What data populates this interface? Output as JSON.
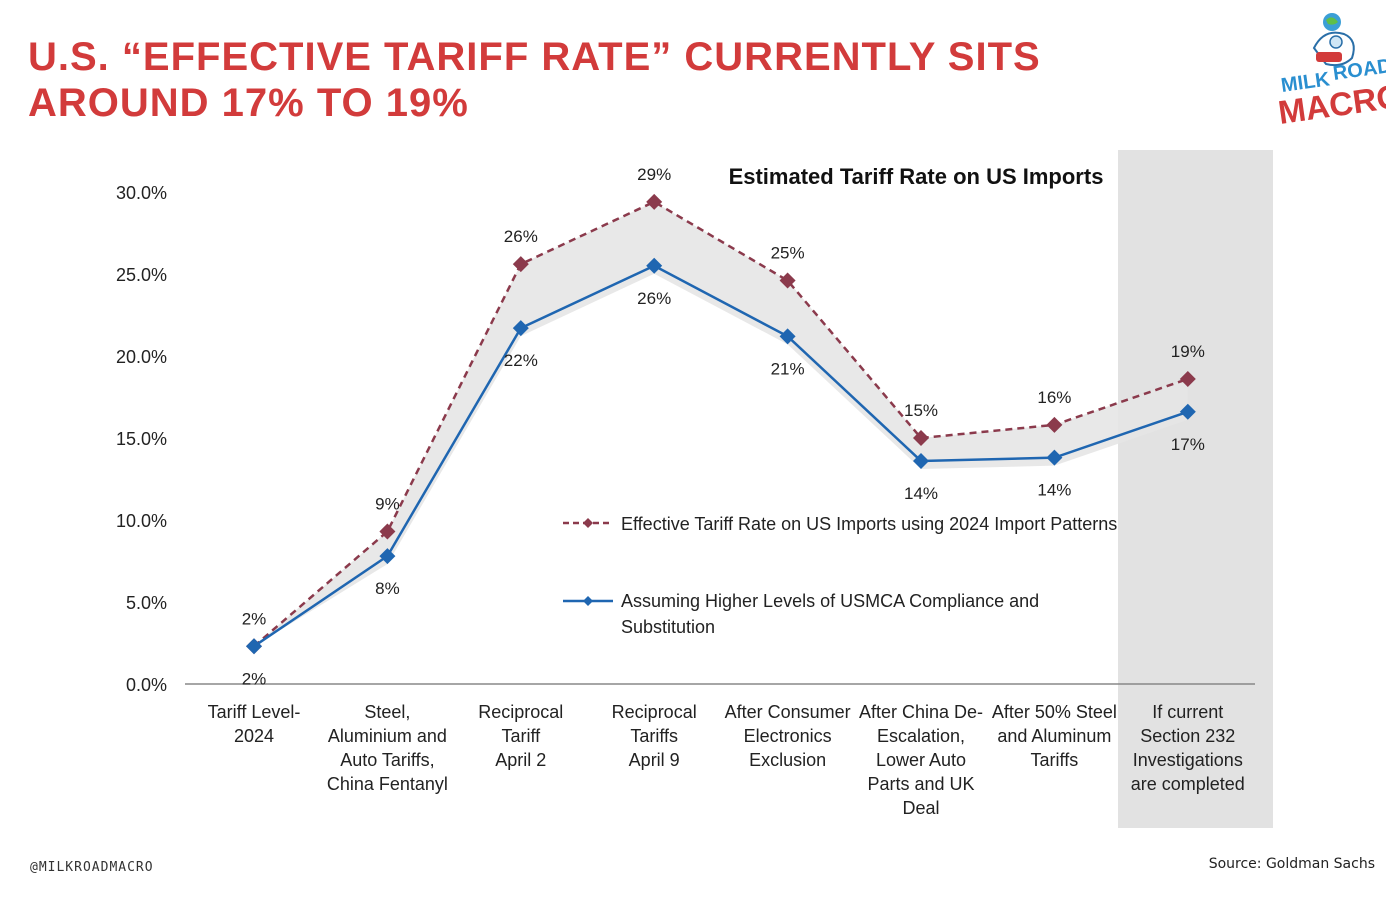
{
  "headline": {
    "line1": "U.S. “EFFECTIVE TARIFF RATE” CURRENTLY SITS",
    "line2": "AROUND 17% TO 19%"
  },
  "logo": {
    "word1": "MILK",
    "word2": "ROAD",
    "word3": "MACRO",
    "icon": "astronaut-globe-icon"
  },
  "footer": {
    "handle": "@MILKROADMACRO",
    "source": "Source: Goldman Sachs"
  },
  "colors": {
    "headline": "#d23b3b",
    "series1": "#8b3a4c",
    "series2": "#1f66b1",
    "band": "#e6e6e6"
  },
  "chart_data": {
    "type": "line",
    "title": "Estimated Tariff Rate on US Imports",
    "categories": [
      [
        "Tariff Level-",
        "2024"
      ],
      [
        "Steel,",
        "Aluminium and",
        "Auto Tariffs,",
        "China Fentanyl"
      ],
      [
        "Reciprocal",
        "Tariff",
        "April 2"
      ],
      [
        "Reciprocal",
        "Tariffs",
        "April 9"
      ],
      [
        "After Consumer",
        "Electronics",
        "Exclusion"
      ],
      [
        "After China De-",
        "Escalation,",
        "Lower Auto",
        "Parts and UK",
        "Deal"
      ],
      [
        "After 50% Steel",
        "and Aluminum",
        "Tariffs"
      ],
      [
        "If current",
        "Section 232",
        "Investigations",
        "are completed"
      ]
    ],
    "y_ticks": [
      "0.0%",
      "5.0%",
      "10.0%",
      "15.0%",
      "20.0%",
      "25.0%",
      "30.0%"
    ],
    "ylim": [
      0,
      30
    ],
    "series": [
      {
        "name": "Effective Tariff Rate on US Imports using 2024 Import Patterns",
        "values": [
          2.3,
          9.3,
          25.6,
          29.4,
          24.6,
          15.0,
          15.8,
          18.6
        ],
        "labels": [
          "2%",
          "9%",
          "26%",
          "29%",
          "25%",
          "15%",
          "16%",
          "19%"
        ],
        "style": "dashed-diamond"
      },
      {
        "name": "Assuming Higher Levels of USMCA Compliance and Substitution",
        "values": [
          2.3,
          7.8,
          21.7,
          25.5,
          21.2,
          13.6,
          13.8,
          16.6
        ],
        "labels": [
          "2%",
          "8%",
          "22%",
          "26%",
          "21%",
          "14%",
          "14%",
          "17%"
        ],
        "style": "solid-diamond"
      }
    ],
    "legend": {
      "entry1": "Effective Tariff Rate on US Imports using 2024 Import Patterns",
      "entry2_line1": "Assuming Higher Levels of USMCA Compliance and",
      "entry2_line2": "Substitution"
    },
    "shaded_category": "If current Section 232 Investigations are completed",
    "grid": false
  }
}
